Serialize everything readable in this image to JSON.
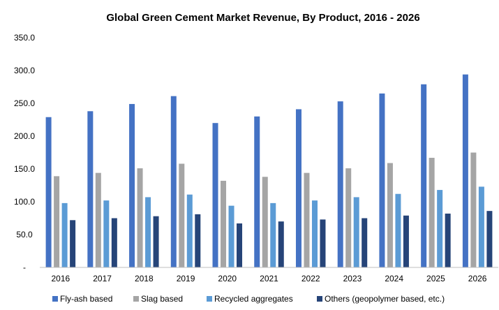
{
  "chart_data": {
    "type": "bar",
    "title": "Global Green Cement Market Revenue, By Product, 2016 - 2026",
    "xlabel": "",
    "ylabel": "",
    "categories": [
      "2016",
      "2017",
      "2018",
      "2019",
      "2020",
      "2021",
      "2022",
      "2023",
      "2024",
      "2025",
      "2026"
    ],
    "series": [
      {
        "name": "Fly-ash based",
        "color": "#4472C4",
        "values": [
          229,
          238,
          249,
          261,
          220,
          230,
          241,
          253,
          265,
          279,
          294
        ]
      },
      {
        "name": "Slag based",
        "color": "#A5A5A5",
        "values": [
          139,
          144,
          151,
          158,
          132,
          138,
          144,
          151,
          159,
          167,
          175
        ]
      },
      {
        "name": "Recycled aggregates",
        "color": "#5B9BD5",
        "values": [
          98,
          102,
          107,
          111,
          94,
          98,
          102,
          107,
          112,
          118,
          123
        ]
      },
      {
        "name": "Others (geopolymer based, etc.)",
        "color": "#264478",
        "values": [
          72,
          75,
          78,
          81,
          67,
          70,
          73,
          75,
          79,
          82,
          86
        ]
      }
    ],
    "ylim": [
      0,
      350
    ],
    "yticks": [
      "-",
      "50.0",
      "100.0",
      "150.0",
      "200.0",
      "250.0",
      "300.0",
      "350.0"
    ],
    "grid": false,
    "legend": "bottom"
  }
}
